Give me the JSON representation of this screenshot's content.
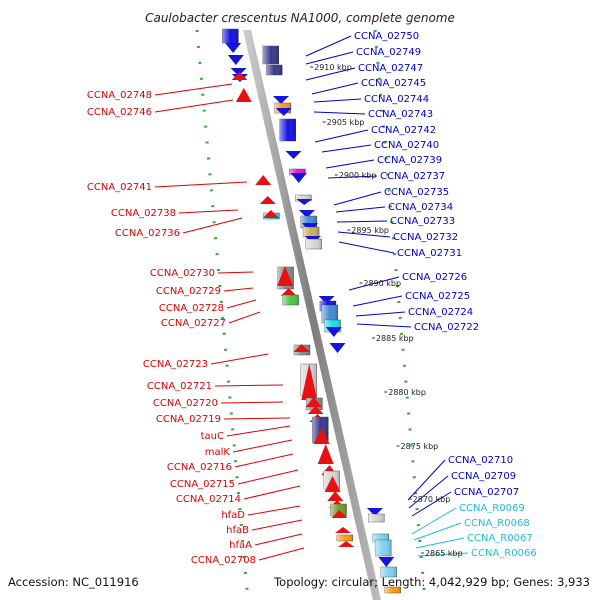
{
  "title": "Caulobacter crescentus NA1000, complete genome",
  "footer": {
    "accession": "Accession: NC_011916",
    "summary": "Topology: circular; Length: 4,042,929 bp; Genes: 3,933"
  },
  "colors": {
    "left_label": "#dd0000",
    "right_label": "#0000cc",
    "rna_label": "#22bbdd",
    "axis": "#888888",
    "dots": "#33aa33"
  },
  "kbp_marks": [
    "2910 kbp",
    "2905 kbp",
    "2900 kbp",
    "2895 kbp",
    "2890 kbp",
    "2885 kbp",
    "2880 kbp",
    "2875 kbp",
    "2870 kbp",
    "2865 kbp"
  ],
  "left_labels": [
    "CCNA_02748",
    "CCNA_02746",
    "CCNA_02741",
    "CCNA_02738",
    "CCNA_02736",
    "CCNA_02730",
    "CCNA_02729",
    "CCNA_02728",
    "CCNA_02727",
    "CCNA_02723",
    "CCNA_02721",
    "CCNA_02720",
    "CCNA_02719",
    "tauC",
    "malK",
    "CCNA_02716",
    "CCNA_02715",
    "CCNA_02714",
    "hfaD",
    "hfaB",
    "hfaA",
    "CCNA_02708"
  ],
  "right_labels": [
    "CCNA_02750",
    "CCNA_02749",
    "CCNA_02747",
    "CCNA_02745",
    "CCNA_02744",
    "CCNA_02743",
    "CCNA_02742",
    "CCNA_02740",
    "CCNA_02739",
    "CCNA_02737",
    "CCNA_02735",
    "CCNA_02734",
    "CCNA_02733",
    "CCNA_02732",
    "CCNA_02731",
    "CCNA_02726",
    "CCNA_02725",
    "CCNA_02724",
    "CCNA_02722",
    "CCNA_02710",
    "CCNA_02709",
    "CCNA_02707"
  ],
  "rna_labels": [
    "CCNA_R0069",
    "CCNA_R0068",
    "CCNA_R0067",
    "CCNA_R0066"
  ]
}
